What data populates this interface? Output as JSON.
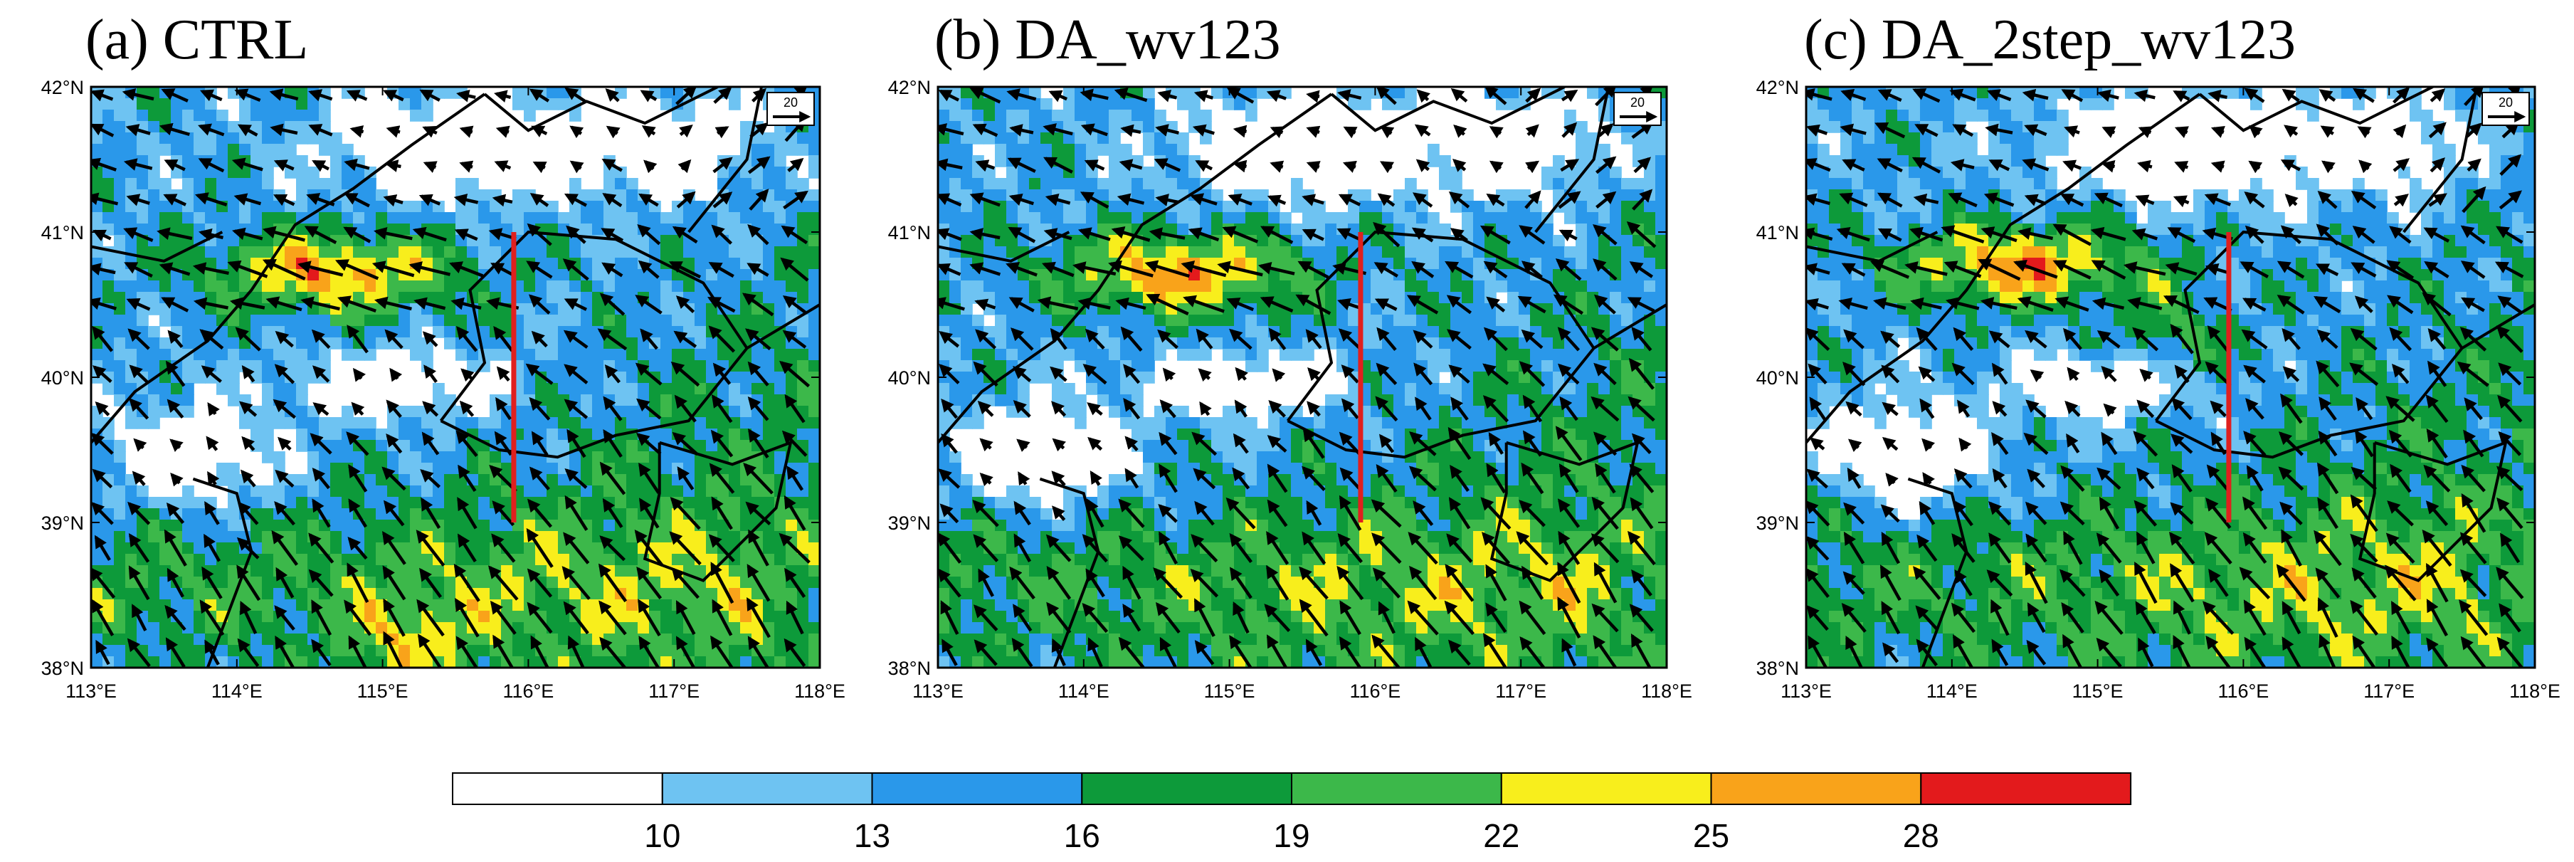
{
  "panels": [
    {
      "id": "a",
      "title": "(a) CTRL"
    },
    {
      "id": "b",
      "title": "(b) DA_wv123"
    },
    {
      "id": "c",
      "title": "(c) DA_2step_wv123"
    }
  ],
  "map": {
    "lon_range": [
      113,
      118
    ],
    "lat_range": [
      38,
      42
    ],
    "lon_ticks": [
      "113°E",
      "114°E",
      "115°E",
      "116°E",
      "117°E",
      "118°E"
    ],
    "lat_ticks": [
      "38°N",
      "39°N",
      "40°N",
      "41°N",
      "42°N"
    ],
    "cross_section_lon": 115.9,
    "cross_section_lat": [
      39,
      41
    ],
    "cross_section_color": "#e0201e"
  },
  "reference_vector": {
    "label": "20"
  },
  "colorbar": {
    "levels": [
      "10",
      "13",
      "16",
      "19",
      "22",
      "25",
      "28"
    ],
    "colors": [
      "#ffffff",
      "#6ec3f2",
      "#2a98ea",
      "#0d9a3a",
      "#3cb84a",
      "#f8ee1c",
      "#f9a31a",
      "#e31a1c"
    ]
  }
}
